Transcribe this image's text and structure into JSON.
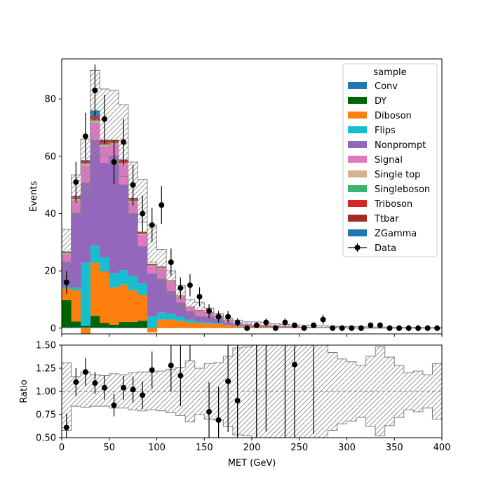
{
  "chart_data": [
    {
      "type": "bar",
      "subtype": "stacked-histogram",
      "xlabel": "",
      "ylabel": "Events",
      "xlim": [
        0,
        400
      ],
      "ylim": [
        -2,
        94
      ],
      "yticks": [
        "0",
        "20",
        "40",
        "60",
        "80"
      ],
      "bin_width": 10,
      "legend_title": "sample",
      "legend_position": "top-right",
      "grid": false,
      "series": [
        {
          "name": "Conv",
          "color": "#1f77b4",
          "values": [
            0.3,
            0.3,
            0.3,
            0.3,
            0.3,
            0.2,
            0.2,
            0.2,
            0.1,
            0.1,
            0,
            0,
            0,
            0,
            0,
            0,
            0,
            0,
            0,
            0,
            0,
            0,
            0,
            0,
            0,
            0,
            0,
            0,
            0,
            0,
            0,
            0,
            0,
            0,
            0,
            0,
            0,
            0,
            0,
            0
          ]
        },
        {
          "name": "DY",
          "color": "#006400",
          "values": [
            9.5,
            2,
            0.5,
            4,
            1.5,
            1,
            2,
            2,
            2.5,
            0,
            0,
            0,
            0,
            0,
            0,
            0,
            0,
            0,
            0,
            0,
            0,
            0,
            0,
            0,
            0,
            0,
            0,
            0,
            0,
            0,
            0,
            0,
            0,
            0,
            0,
            0,
            0,
            0,
            0,
            0
          ]
        },
        {
          "name": "Diboson",
          "color": "#ff7f0e",
          "values": [
            4,
            11,
            -3,
            18.5,
            18,
            13,
            13,
            11,
            9,
            -1.5,
            3,
            3,
            2.5,
            2,
            1.8,
            1.5,
            1.4,
            1,
            0.5,
            0.5,
            0.3,
            0.3,
            0.3,
            0.2,
            0.2,
            0.1,
            0.1,
            0.1,
            0.1,
            0.1,
            0,
            0,
            0,
            0,
            0,
            0,
            0,
            0,
            0,
            0
          ]
        },
        {
          "name": "Flips",
          "color": "#17becf",
          "values": [
            0.5,
            1,
            22,
            6,
            5,
            5,
            5,
            5,
            4,
            4,
            2.5,
            2,
            1.5,
            1,
            0.5,
            0.5,
            0.3,
            0.2,
            0.1,
            0.1,
            0,
            0,
            0,
            0,
            0,
            0,
            0,
            0,
            0,
            0,
            0,
            0,
            0,
            0,
            0,
            0,
            0,
            0,
            0,
            0
          ]
        },
        {
          "name": "Nonprompt",
          "color": "#9467bd",
          "values": [
            9,
            26,
            28,
            37,
            33,
            41,
            30,
            22,
            13,
            15,
            11.5,
            8,
            5,
            3,
            2,
            2,
            1.5,
            0.8,
            0.5,
            0.4,
            0.3,
            0.3,
            0.2,
            0.2,
            0.2,
            0.1,
            0.1,
            0.1,
            0.1,
            0.1,
            0,
            0,
            0,
            0,
            0,
            0,
            0,
            0,
            0,
            0
          ]
        },
        {
          "name": "Signal",
          "color": "#e377c2",
          "values": [
            2.5,
            4.2,
            6,
            6,
            5.6,
            4,
            7,
            3.8,
            4,
            2.5,
            3.8,
            3.2,
            2,
            1.3,
            1.8,
            1.5,
            1.3,
            1,
            0.8,
            0.6,
            0.6,
            0.6,
            0.5,
            0.4,
            0.3,
            0.3,
            0.2,
            0.2,
            0.2,
            0.1,
            0.1,
            0.1,
            0.1,
            0.1,
            0.1,
            0,
            0,
            0,
            0,
            0
          ]
        },
        {
          "name": "Single top",
          "color": "#d2b48c",
          "values": [
            0.3,
            0.5,
            0.5,
            0.5,
            0.5,
            0.3,
            0.3,
            0.3,
            0.2,
            0.2,
            0.2,
            0.1,
            0.1,
            0.1,
            0,
            0,
            0,
            0,
            0,
            0,
            0,
            0,
            0,
            0,
            0,
            0,
            0,
            0,
            0,
            0,
            0,
            0,
            0,
            0,
            0,
            0,
            0,
            0,
            0,
            0
          ]
        },
        {
          "name": "Singleboson",
          "color": "#3cb371",
          "values": [
            0.2,
            0.2,
            0.2,
            0.3,
            0.3,
            0.2,
            0.2,
            0.2,
            0.2,
            0.1,
            0.1,
            0.1,
            0.1,
            0,
            0,
            0,
            0,
            0,
            0,
            0,
            0,
            0,
            0,
            0,
            0,
            0,
            0,
            0,
            0,
            0,
            0,
            0,
            0,
            0,
            0,
            0,
            0,
            0,
            0,
            0
          ]
        },
        {
          "name": "Triboson",
          "color": "#d62728",
          "values": [
            0.2,
            0.5,
            0.5,
            0.6,
            0.6,
            0.5,
            0.6,
            0.5,
            0.3,
            0.3,
            0.2,
            0.2,
            0.1,
            0.1,
            0.1,
            0.1,
            0,
            0,
            0,
            0,
            0,
            0,
            0,
            0,
            0,
            0,
            0,
            0,
            0,
            0,
            0,
            0,
            0,
            0,
            0,
            0,
            0,
            0,
            0,
            0
          ]
        },
        {
          "name": "Ttbar",
          "color": "#a52a2a",
          "values": [
            0.2,
            0.4,
            0.5,
            0.8,
            0.8,
            0.5,
            0.5,
            0.4,
            0.3,
            0.2,
            0.2,
            0.1,
            0.1,
            0.1,
            0.1,
            0,
            0,
            0,
            0,
            0,
            0,
            0,
            0,
            0,
            0,
            0,
            0,
            0,
            0,
            0,
            0,
            0,
            0,
            0,
            0,
            0,
            0,
            0,
            0,
            0
          ]
        },
        {
          "name": "ZGamma",
          "color": "#1f77b4",
          "values": [
            0.1,
            0.1,
            0.2,
            2,
            0.2,
            0.1,
            0.1,
            0.1,
            0.1,
            0.1,
            0.1,
            0,
            0,
            0,
            0,
            0,
            0,
            0,
            0,
            0,
            0,
            0,
            0,
            0,
            0,
            0,
            0,
            0,
            0,
            0,
            0,
            0,
            0,
            0,
            0,
            0,
            0,
            0,
            0,
            0
          ]
        }
      ],
      "uncertainty": {
        "up": [
          34.5,
          53.5,
          66,
          90,
          83.5,
          83,
          78,
          58,
          52,
          36,
          27.5,
          20,
          15,
          10,
          9,
          7,
          5.2,
          3.5,
          2.8,
          2.2,
          2.2,
          1.8,
          1.5,
          1.3,
          1.1,
          1,
          0.9,
          0.8,
          0.7,
          0.6,
          0.5,
          0.5,
          0.4,
          0.4,
          0.4,
          0.3,
          0.3,
          0.3,
          0.2,
          0.2
        ],
        "down": [
          18.5,
          40,
          47,
          60,
          60,
          57,
          53,
          40,
          37,
          23,
          17,
          12,
          8,
          5,
          4,
          3.5,
          2.5,
          1.5,
          1,
          0.8,
          0.5,
          0.5,
          0.5,
          0.4,
          0.3,
          0.2,
          0.2,
          0.2,
          0.1,
          0.1,
          0,
          0,
          0,
          0,
          0,
          0,
          0,
          0,
          0,
          0
        ]
      },
      "data_series": {
        "name": "Data",
        "x": [
          5,
          15,
          25,
          35,
          45,
          55,
          65,
          75,
          85,
          95,
          105,
          115,
          125,
          135,
          145,
          155,
          165,
          175,
          185,
          195,
          205,
          215,
          225,
          235,
          245,
          255,
          265,
          275,
          285,
          295,
          305,
          315,
          325,
          335,
          345,
          355,
          365,
          375,
          385,
          395
        ],
        "y": [
          16,
          51,
          67,
          83,
          73,
          58,
          65,
          50,
          40,
          36,
          43,
          23,
          14,
          15,
          11,
          6,
          4,
          4,
          2,
          0,
          1,
          2,
          0,
          2,
          1,
          0,
          1,
          3,
          0,
          0,
          0,
          0,
          1,
          1,
          0,
          0,
          0,
          0,
          0,
          0
        ],
        "yerr": [
          4,
          7.1,
          8.2,
          9.1,
          8.5,
          7.6,
          8.1,
          7.1,
          6.3,
          6,
          6.6,
          4.8,
          3.7,
          3.9,
          3.3,
          2.4,
          2,
          2,
          1.4,
          1,
          1,
          1.4,
          1,
          1.4,
          1,
          1,
          1,
          1.7,
          1,
          1,
          1,
          1,
          1,
          1,
          1,
          1,
          1,
          1,
          1,
          1
        ]
      }
    },
    {
      "type": "scatter",
      "subtype": "ratio",
      "xlabel": "MET (GeV)",
      "ylabel": "Ratio",
      "xlim": [
        0,
        400
      ],
      "ylim": [
        0.5,
        1.5
      ],
      "xticks": [
        "0",
        "50",
        "100",
        "150",
        "200",
        "250",
        "300",
        "350",
        "400"
      ],
      "yticks": [
        "0.50",
        "0.75",
        "1.00",
        "1.25",
        "1.50"
      ],
      "reference_line": 1.0,
      "band_up": [
        1.31,
        1.16,
        1.21,
        1.18,
        1.17,
        1.19,
        1.18,
        1.2,
        1.21,
        1.21,
        1.22,
        1.24,
        1.26,
        1.33,
        1.25,
        1.3,
        1.31,
        1.38,
        1.47,
        1.48,
        1.56,
        1.57,
        1.58,
        1.59,
        1.62,
        1.61,
        1.62,
        1.55,
        1.42,
        1.35,
        1.32,
        1.28,
        1.38,
        1.48,
        1.37,
        1.28,
        1.2,
        1.22,
        1.18,
        1.3
      ],
      "band_down": [
        0.58,
        0.84,
        0.83,
        0.84,
        0.84,
        0.82,
        0.82,
        0.8,
        0.79,
        0.8,
        0.79,
        0.77,
        0.74,
        0.67,
        0.75,
        0.7,
        0.69,
        0.62,
        0.53,
        0.52,
        0.44,
        0.43,
        0.42,
        0.41,
        0.38,
        0.39,
        0.38,
        0.45,
        0.58,
        0.65,
        0.68,
        0.72,
        0.62,
        0.52,
        0.63,
        0.72,
        0.8,
        0.78,
        0.82,
        0.7
      ],
      "points": {
        "x": [
          5,
          15,
          25,
          35,
          45,
          55,
          65,
          75,
          85,
          95,
          115,
          125,
          155,
          165,
          175,
          185,
          245
        ],
        "y": [
          0.61,
          1.1,
          1.21,
          1.09,
          1.04,
          0.85,
          1.04,
          1.02,
          0.96,
          1.23,
          1.28,
          1.17,
          0.78,
          0.69,
          1.11,
          0.9,
          1.29
        ],
        "yerr": [
          0.15,
          0.15,
          0.15,
          0.12,
          0.13,
          0.12,
          0.13,
          0.14,
          0.15,
          0.2,
          0.28,
          0.33,
          0.32,
          0.36,
          0.55,
          0.65,
          1.0
        ]
      },
      "long_error_bars": [
        {
          "x": 135,
          "lo": 1.33,
          "hi": 1.5
        },
        {
          "x": 205,
          "lo": 0.5,
          "hi": 1.5
        },
        {
          "x": 215,
          "lo": 0.57,
          "hi": 1.5
        },
        {
          "x": 235,
          "lo": 0.5,
          "hi": 1.5
        },
        {
          "x": 265,
          "lo": 0.54,
          "hi": 1.5
        }
      ]
    }
  ]
}
